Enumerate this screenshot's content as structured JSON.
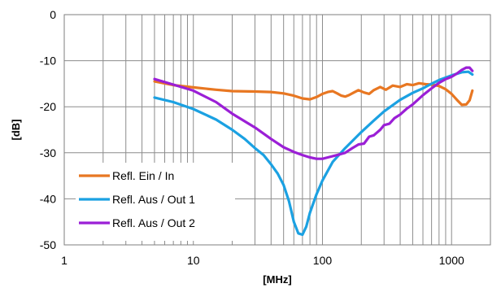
{
  "chart_data": {
    "type": "line",
    "x_scale": "log",
    "xlabel": "[MHz]",
    "ylabel": "[dB]",
    "xlim": [
      1,
      2000
    ],
    "ylim": [
      -50,
      0
    ],
    "x_ticks": [
      1,
      10,
      100,
      1000
    ],
    "x_tick_labels": [
      "1",
      "10",
      "100",
      "1000"
    ],
    "y_ticks": [
      0,
      -10,
      -20,
      -30,
      -40,
      -50
    ],
    "y_tick_labels": [
      "0",
      "-10",
      "-20",
      "-30",
      "-40",
      "-50"
    ],
    "grid": true,
    "legend_position": "bottom-left",
    "series": [
      {
        "name": "Refl. Ein / In",
        "color": "#E87722",
        "points": [
          [
            5,
            -14.5
          ],
          [
            7,
            -15.3
          ],
          [
            10,
            -15.8
          ],
          [
            15,
            -16.3
          ],
          [
            20,
            -16.6
          ],
          [
            30,
            -16.7
          ],
          [
            40,
            -16.8
          ],
          [
            50,
            -17.1
          ],
          [
            60,
            -17.6
          ],
          [
            70,
            -18.2
          ],
          [
            80,
            -18.4
          ],
          [
            90,
            -17.9
          ],
          [
            100,
            -17.2
          ],
          [
            110,
            -16.8
          ],
          [
            120,
            -16.6
          ],
          [
            130,
            -17.1
          ],
          [
            140,
            -17.6
          ],
          [
            150,
            -17.8
          ],
          [
            160,
            -17.5
          ],
          [
            175,
            -16.9
          ],
          [
            190,
            -16.4
          ],
          [
            210,
            -16.9
          ],
          [
            230,
            -17.2
          ],
          [
            250,
            -16.4
          ],
          [
            280,
            -15.7
          ],
          [
            310,
            -16.3
          ],
          [
            350,
            -15.4
          ],
          [
            400,
            -15.7
          ],
          [
            450,
            -15.1
          ],
          [
            500,
            -15.3
          ],
          [
            560,
            -14.9
          ],
          [
            630,
            -15.1
          ],
          [
            700,
            -15.2
          ],
          [
            800,
            -15.5
          ],
          [
            900,
            -16.2
          ],
          [
            1000,
            -17.2
          ],
          [
            1100,
            -18.5
          ],
          [
            1200,
            -19.6
          ],
          [
            1300,
            -19.5
          ],
          [
            1380,
            -18.6
          ],
          [
            1450,
            -16.5
          ]
        ]
      },
      {
        "name": "Refl. Aus / Out 1",
        "color": "#1BA1E2",
        "points": [
          [
            5,
            -18
          ],
          [
            7,
            -19
          ],
          [
            10,
            -20.5
          ],
          [
            15,
            -22.8
          ],
          [
            20,
            -25
          ],
          [
            25,
            -27
          ],
          [
            30,
            -29
          ],
          [
            35,
            -30.5
          ],
          [
            40,
            -32.5
          ],
          [
            45,
            -34.5
          ],
          [
            50,
            -37
          ],
          [
            55,
            -40.5
          ],
          [
            60,
            -45
          ],
          [
            65,
            -47.5
          ],
          [
            70,
            -47.8
          ],
          [
            75,
            -46
          ],
          [
            80,
            -43
          ],
          [
            90,
            -39
          ],
          [
            100,
            -36
          ],
          [
            120,
            -32
          ],
          [
            150,
            -29
          ],
          [
            200,
            -25.5
          ],
          [
            250,
            -23
          ],
          [
            300,
            -21
          ],
          [
            400,
            -18.5
          ],
          [
            500,
            -17
          ],
          [
            600,
            -16
          ],
          [
            700,
            -15
          ],
          [
            800,
            -14.2
          ],
          [
            1000,
            -13.2
          ],
          [
            1200,
            -12.5
          ],
          [
            1350,
            -12.4
          ],
          [
            1450,
            -13
          ]
        ]
      },
      {
        "name": "Refl. Aus / Out 2",
        "color": "#9B1FD6",
        "points": [
          [
            5,
            -14
          ],
          [
            7,
            -15.2
          ],
          [
            10,
            -16.5
          ],
          [
            15,
            -19
          ],
          [
            20,
            -21.5
          ],
          [
            30,
            -24.5
          ],
          [
            40,
            -27
          ],
          [
            50,
            -28.8
          ],
          [
            60,
            -29.8
          ],
          [
            70,
            -30.5
          ],
          [
            80,
            -31
          ],
          [
            90,
            -31.3
          ],
          [
            100,
            -31.3
          ],
          [
            110,
            -31
          ],
          [
            130,
            -30.5
          ],
          [
            150,
            -30
          ],
          [
            170,
            -29
          ],
          [
            190,
            -28.2
          ],
          [
            210,
            -28
          ],
          [
            230,
            -26.5
          ],
          [
            250,
            -26.2
          ],
          [
            280,
            -25
          ],
          [
            300,
            -24
          ],
          [
            330,
            -23.7
          ],
          [
            360,
            -22.5
          ],
          [
            400,
            -21.7
          ],
          [
            450,
            -20.4
          ],
          [
            500,
            -19.5
          ],
          [
            600,
            -17.5
          ],
          [
            700,
            -16
          ],
          [
            800,
            -14.8
          ],
          [
            900,
            -14
          ],
          [
            1000,
            -13.5
          ],
          [
            1100,
            -12.8
          ],
          [
            1200,
            -12
          ],
          [
            1300,
            -11.5
          ],
          [
            1380,
            -11.5
          ],
          [
            1450,
            -12.2
          ]
        ]
      }
    ]
  }
}
